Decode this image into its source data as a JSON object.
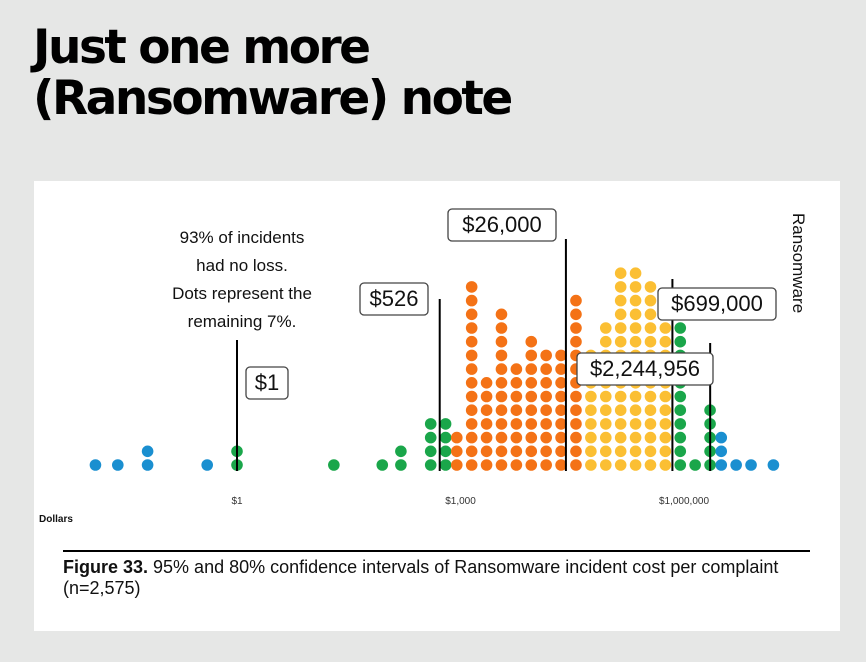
{
  "headline": {
    "line1": "Just one more",
    "line2": "(Ransomware) note"
  },
  "colors": {
    "blue": "#1a8fd0",
    "green": "#1aa64a",
    "orange": "#f47216",
    "yellow": "#fbbf33",
    "background": "#e6e7e6"
  },
  "chart_data": {
    "type": "dot",
    "xscale": "log",
    "xlabel": "Dollars",
    "ylabel": "Ransomware",
    "x_ticks": [
      {
        "value": 1,
        "label": "$1"
      },
      {
        "value": 1000,
        "label": "$1,000"
      },
      {
        "value": 1000000,
        "label": "$1,000,000"
      }
    ],
    "annotation": [
      "93% of incidents",
      "had no loss.",
      "Dots represent the",
      "remaining 7%."
    ],
    "markers": [
      {
        "value": 1,
        "label": "$1"
      },
      {
        "value": 526,
        "label": "$526"
      },
      {
        "value": 26000,
        "label": "$26,000"
      },
      {
        "value": 699000,
        "label": "$699,000"
      },
      {
        "value": 2244956,
        "label": "$2,244,956"
      }
    ],
    "columns": [
      {
        "log10": -1.9,
        "count": 1,
        "color": "blue"
      },
      {
        "log10": -1.6,
        "count": 1,
        "color": "blue"
      },
      {
        "log10": -1.2,
        "count": 2,
        "color": "blue"
      },
      {
        "log10": -0.4,
        "count": 1,
        "color": "blue"
      },
      {
        "log10": 0.0,
        "count": 2,
        "color": "green"
      },
      {
        "log10": 1.3,
        "count": 1,
        "color": "green"
      },
      {
        "log10": 1.95,
        "count": 1,
        "color": "green"
      },
      {
        "log10": 2.2,
        "count": 2,
        "color": "green"
      },
      {
        "log10": 2.6,
        "count": 4,
        "color": "green"
      },
      {
        "log10": 2.8,
        "count": 4,
        "color": "green"
      },
      {
        "log10": 2.95,
        "count": 3,
        "color": "orange"
      },
      {
        "log10": 3.15,
        "count": 14,
        "color": "orange"
      },
      {
        "log10": 3.35,
        "count": 7,
        "color": "orange"
      },
      {
        "log10": 3.55,
        "count": 12,
        "color": "orange"
      },
      {
        "log10": 3.75,
        "count": 8,
        "color": "orange"
      },
      {
        "log10": 3.95,
        "count": 10,
        "color": "orange"
      },
      {
        "log10": 4.15,
        "count": 9,
        "color": "orange"
      },
      {
        "log10": 4.35,
        "count": 9,
        "color": "orange"
      },
      {
        "log10": 4.55,
        "count": 13,
        "color": "orange"
      },
      {
        "log10": 4.75,
        "count": 9,
        "color": "yellow"
      },
      {
        "log10": 4.95,
        "count": 11,
        "color": "yellow"
      },
      {
        "log10": 5.15,
        "count": 15,
        "color": "yellow"
      },
      {
        "log10": 5.35,
        "count": 15,
        "color": "yellow"
      },
      {
        "log10": 5.55,
        "count": 14,
        "color": "yellow"
      },
      {
        "log10": 5.75,
        "count": 12,
        "color": "yellow"
      },
      {
        "log10": 5.95,
        "count": 11,
        "color": "green"
      },
      {
        "log10": 6.15,
        "count": 1,
        "color": "green"
      },
      {
        "log10": 6.35,
        "count": 5,
        "color": "green"
      },
      {
        "log10": 6.5,
        "count": 3,
        "color": "blue"
      },
      {
        "log10": 6.7,
        "count": 1,
        "color": "blue"
      },
      {
        "log10": 6.9,
        "count": 1,
        "color": "blue"
      },
      {
        "log10": 7.2,
        "count": 1,
        "color": "blue"
      }
    ]
  },
  "caption": {
    "label": "Figure 33.",
    "text": " 95% and 80% confidence intervals of Ransomware incident cost per complaint (n=2,575)"
  }
}
